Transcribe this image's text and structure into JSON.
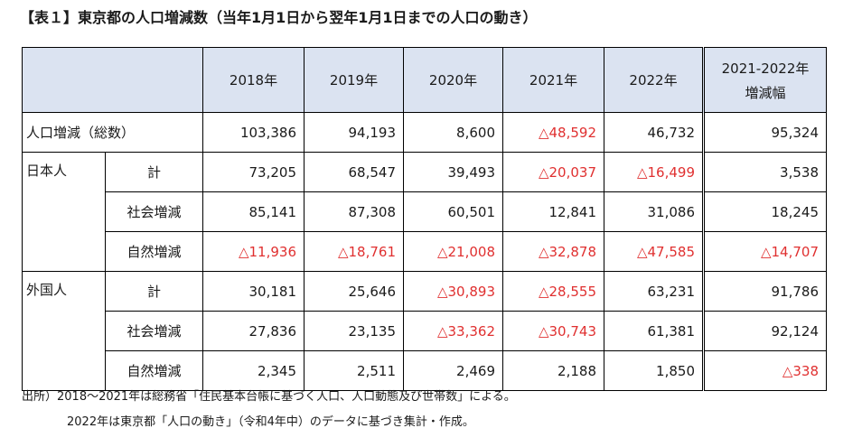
{
  "title": "【表１】東京都の人口増減数（当年1月1日から翌年1月1日までの人口の動き）",
  "header": {
    "years": [
      "2018年",
      "2019年",
      "2020年",
      "2021年",
      "2022年"
    ],
    "change_line1": "2021-2022年",
    "change_line2": "増減幅"
  },
  "rows": {
    "total": {
      "label": "人口増減（総数）",
      "values": [
        "103,386",
        "94,193",
        "8,600",
        "△48,592",
        "46,732",
        "95,324"
      ]
    },
    "japanese": {
      "group": "日本人",
      "total": {
        "label": "計",
        "values": [
          "73,205",
          "68,547",
          "39,493",
          "△20,037",
          "△16,499",
          "3,538"
        ]
      },
      "social": {
        "label": "社会増減",
        "values": [
          "85,141",
          "87,308",
          "60,501",
          "12,841",
          "31,086",
          "18,245"
        ]
      },
      "natural": {
        "label": "自然増減",
        "values": [
          "△11,936",
          "△18,761",
          "△21,008",
          "△32,878",
          "△47,585",
          "△14,707"
        ]
      }
    },
    "foreign": {
      "group": "外国人",
      "total": {
        "label": "計",
        "values": [
          "30,181",
          "25,646",
          "△30,893",
          "△28,555",
          "63,231",
          "91,786"
        ]
      },
      "social": {
        "label": "社会増減",
        "values": [
          "27,836",
          "23,135",
          "△33,362",
          "△30,743",
          "61,381",
          "92,124"
        ]
      },
      "natural": {
        "label": "自然増減",
        "values": [
          "2,345",
          "2,511",
          "2,469",
          "2,188",
          "1,850",
          "△338"
        ]
      }
    }
  },
  "notes": {
    "line1": "出所）2018～2021年は総務省「住民基本台帳に基づく人口、人口動態及び世帯数」による。",
    "line2": "2022年は東京都「人口の動き」（令和4年中）のデータに基づき集計・作成。"
  },
  "colors": {
    "header_bg": "#dbe3f1",
    "negative": "#e03030"
  }
}
